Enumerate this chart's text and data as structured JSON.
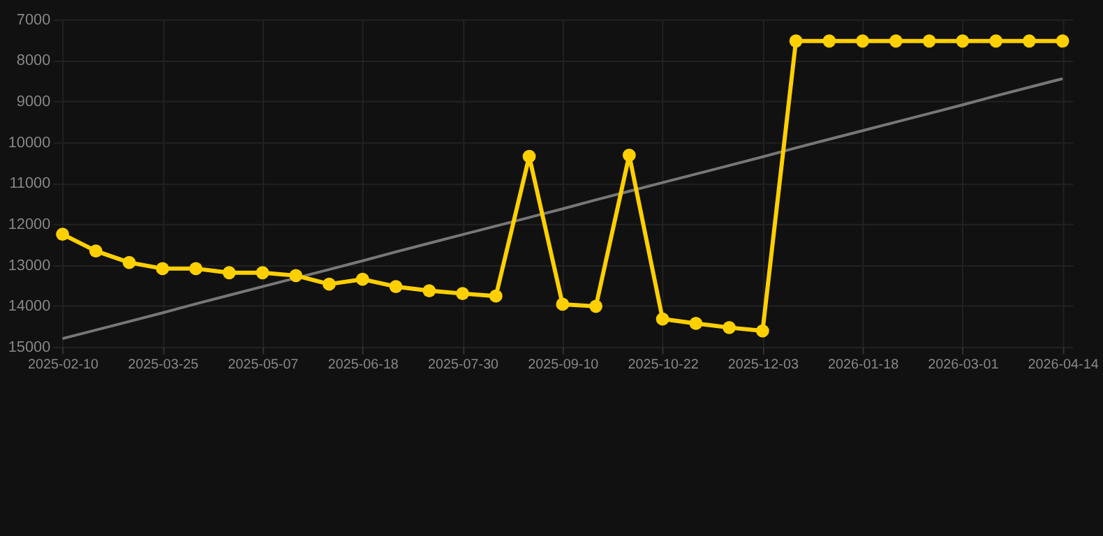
{
  "chart_data": {
    "type": "line",
    "categories": [
      "2025-02-10",
      null,
      null,
      "2025-03-25",
      null,
      null,
      "2025-05-07",
      null,
      null,
      "2025-06-18",
      null,
      null,
      "2025-07-30",
      null,
      null,
      "2025-09-10",
      null,
      null,
      "2025-10-22",
      null,
      null,
      "2025-12-03",
      null,
      null,
      "2026-01-18",
      null,
      null,
      "2026-03-01",
      null,
      null,
      "2026-04-14"
    ],
    "series": [
      {
        "color": "#ffd000",
        "marker": "circle",
        "values": [
          12250,
          12660,
          12940,
          13090,
          13090,
          13190,
          13190,
          13260,
          13470,
          13350,
          13530,
          13630,
          13700,
          13760,
          10350,
          13960,
          14010,
          10320,
          14320,
          14430,
          14530,
          14610,
          7530,
          7530,
          7530,
          7530,
          7530,
          7530,
          7530,
          7530,
          7530
        ]
      },
      {
        "type": "line",
        "color": "#777777",
        "marker": "none",
        "values": [
          14800,
          14590,
          14380,
          14170,
          13950,
          13740,
          13530,
          13320,
          13110,
          12900,
          12680,
          12470,
          12260,
          12050,
          11840,
          11630,
          11410,
          11200,
          10990,
          10780,
          10570,
          10360,
          10140,
          9930,
          9720,
          9510,
          9300,
          9090,
          8870,
          8660,
          8450
        ]
      }
    ],
    "ylim": [
      15000,
      7000
    ],
    "yticks": [
      7000,
      8000,
      9000,
      10000,
      11000,
      12000,
      13000,
      14000,
      15000
    ],
    "grid": true
  }
}
